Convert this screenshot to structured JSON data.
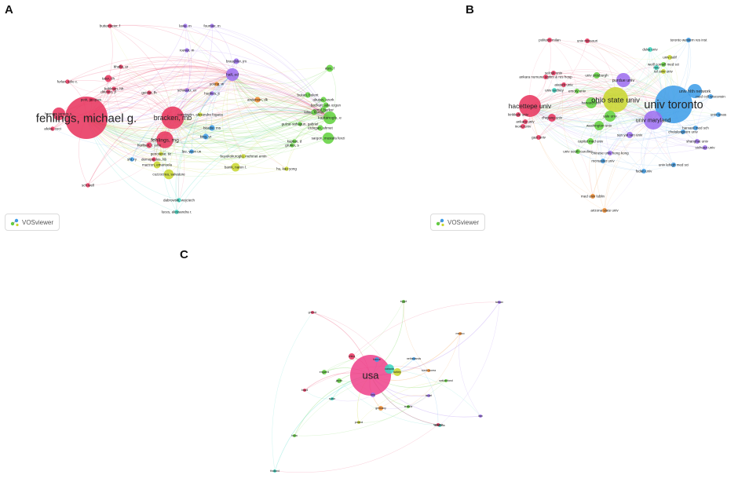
{
  "panels": [
    {
      "letter": "A"
    },
    {
      "letter": "B"
    },
    {
      "letter": "C"
    }
  ],
  "watermark": "VOSviewer",
  "colors": {
    "red": "#e8305a",
    "purple": "#9b6cf0",
    "green": "#5fd13b",
    "blue": "#3a9be8",
    "yellow": "#c8d62a",
    "cyan": "#36d6c0",
    "orange": "#f08a2a",
    "pink": "#ee3f8a"
  },
  "network_a": {
    "nodes": [
      {
        "label": "fehlings, michael g.",
        "color": "red",
        "size": 30
      },
      {
        "label": "bracken, mb",
        "color": "red",
        "size": 16
      },
      {
        "label": "fehlings, mg",
        "color": "red",
        "size": 12
      },
      {
        "label": "hall, ed",
        "color": "purple",
        "size": 9
      },
      {
        "label": "kaptanoglu, e",
        "color": "green",
        "size": 9
      },
      {
        "label": "sargon, mustafa fevzi",
        "color": "green",
        "size": 8
      },
      {
        "label": "cuzzocrea, salvatore",
        "color": "yellow",
        "size": 7
      },
      {
        "label": "banik, naren l.",
        "color": "yellow",
        "size": 6
      },
      {
        "label": "harrop, james s.",
        "color": "red",
        "size": 9
      },
      {
        "label": "mazzon, emanuela",
        "color": "yellow",
        "size": 5
      },
      {
        "label": "dabrowski, wojciech",
        "color": "cyan",
        "size": 3
      },
      {
        "label": "luces, alessandra r.",
        "color": "cyan",
        "size": 3
      },
      {
        "label": "buyukokuroglu, mehmet emin",
        "color": "yellow",
        "size": 3
      },
      {
        "label": "ates, f",
        "color": "green",
        "size": 5
      },
      {
        "label": "braughler, jm",
        "color": "purple",
        "size": 4
      },
      {
        "label": "anderson, dk",
        "color": "orange",
        "size": 4
      },
      {
        "label": "beattie, ms",
        "color": "blue",
        "size": 4
      },
      {
        "label": "hu, kao yong",
        "color": "yellow",
        "size": 3
      },
      {
        "label": "lee, yeon un",
        "color": "blue",
        "size": 3
      },
      {
        "label": "hurlbert, r. john",
        "color": "red",
        "size": 4
      },
      {
        "label": "sch well",
        "color": "red",
        "size": 3
      },
      {
        "label": "okutan, ozerk",
        "color": "green",
        "size": 4
      },
      {
        "label": "bozkurt, atla ozgun",
        "color": "green",
        "size": 4
      },
      {
        "label": "kilinc, kamer",
        "color": "green",
        "size": 4
      },
      {
        "label": "gulzar sahagun, gabriel",
        "color": "green",
        "size": 3
      },
      {
        "label": "erdogan, ahmet",
        "color": "green",
        "size": 4
      },
      {
        "label": "cemil, berker",
        "color": "green",
        "size": 4
      },
      {
        "label": "bukan, bulent",
        "color": "green",
        "size": 4
      },
      {
        "label": "kaptan, d",
        "color": "green",
        "size": 3
      },
      {
        "label": "gruner, s",
        "color": "green",
        "size": 3
      },
      {
        "label": "constantin, alexandre fogaca",
        "color": "yellow",
        "size": 3
      },
      {
        "label": "demopoulos, hb",
        "color": "red",
        "size": 3
      },
      {
        "label": "tator, ch",
        "color": "red",
        "size": 5
      },
      {
        "label": "ditunno, jf",
        "color": "red",
        "size": 3
      },
      {
        "label": "furlan, julio c.",
        "color": "red",
        "size": 3
      },
      {
        "label": "bhalla, ar",
        "color": "red",
        "size": 3
      },
      {
        "label": "bohlman, hh",
        "color": "red",
        "size": 3
      },
      {
        "label": "buttermeier, f",
        "color": "red",
        "size": 3
      },
      {
        "label": "lavie, m",
        "color": "purple",
        "size": 3
      },
      {
        "label": "fournier, m",
        "color": "purple",
        "size": 3
      },
      {
        "label": "roever, m",
        "color": "purple",
        "size": 3
      },
      {
        "label": "young, w",
        "color": "orange",
        "size": 3
      },
      {
        "label": "hughes, jt",
        "color": "purple",
        "size": 3
      },
      {
        "label": "schwartz, er",
        "color": "purple",
        "size": 3
      },
      {
        "label": "geisler, fh",
        "color": "red",
        "size": 3
      },
      {
        "label": "petit, jacques",
        "color": "red",
        "size": 3
      },
      {
        "label": "afeku, ceci",
        "color": "red",
        "size": 3
      },
      {
        "label": "shi, ry",
        "color": "blue",
        "size": 3
      },
      {
        "label": "genovese, tiz",
        "color": "yellow",
        "size": 3
      },
      {
        "label": "king, vr",
        "color": "blue",
        "size": 4
      }
    ]
  },
  "network_b": {
    "nodes": [
      {
        "label": "univ toronto",
        "color": "blue",
        "size": 24
      },
      {
        "label": "ohio state univ",
        "color": "yellow",
        "size": 16
      },
      {
        "label": "hacettepe univ",
        "color": "red",
        "size": 14
      },
      {
        "label": "univ maryland",
        "color": "purple",
        "size": 12
      },
      {
        "label": "univ hlth network",
        "color": "blue",
        "size": 9
      },
      {
        "label": "purdue univ",
        "color": "purple",
        "size": 9
      },
      {
        "label": "harvard univ",
        "color": "green",
        "size": 7
      },
      {
        "label": "yale univ",
        "color": "green",
        "size": 7
      },
      {
        "label": "washington univ",
        "color": "green",
        "size": 6
      },
      {
        "label": "zhejiang univ",
        "color": "red",
        "size": 5
      },
      {
        "label": "univ pittsburgh",
        "color": "green",
        "size": 4
      },
      {
        "label": "capital med univ",
        "color": "green",
        "size": 4
      },
      {
        "label": "sun yat sen univ",
        "color": "purple",
        "size": 4
      },
      {
        "label": "mcmaster univ",
        "color": "blue",
        "size": 3
      },
      {
        "label": "harvard med sch",
        "color": "blue",
        "size": 3
      },
      {
        "label": "duke univ",
        "color": "cyan",
        "size": 3
      },
      {
        "label": "toronto western res inst",
        "color": "blue",
        "size": 3
      },
      {
        "label": "politecn milan",
        "color": "red",
        "size": 3
      },
      {
        "label": "univ missouri",
        "color": "red",
        "size": 3
      },
      {
        "label": "weill cornell med sci",
        "color": "green",
        "size": 3
      },
      {
        "label": "tel aviv univ",
        "color": "yellow",
        "size": 3
      },
      {
        "label": "univ south carolina",
        "color": "green",
        "size": 3
      },
      {
        "label": "chinese univ hong kong",
        "color": "purple",
        "size": 3
      },
      {
        "label": "med univ lublin",
        "color": "orange",
        "size": 3
      },
      {
        "label": "arizona state univ",
        "color": "orange",
        "size": 3
      },
      {
        "label": "ankara numune egitim & res hosp",
        "color": "red",
        "size": 3
      },
      {
        "label": "univ lehigh med sci",
        "color": "blue",
        "size": 3
      },
      {
        "label": "med coll wisconsin",
        "color": "blue",
        "size": 3
      },
      {
        "label": "shanghai univ",
        "color": "purple",
        "size": 3
      },
      {
        "label": "fudan univ",
        "color": "blue",
        "size": 3
      },
      {
        "label": "kirikkale univ",
        "color": "red",
        "size": 3
      },
      {
        "label": "ankara univ",
        "color": "red",
        "size": 3
      },
      {
        "label": "inonu univ",
        "color": "red",
        "size": 3
      },
      {
        "label": "gazi univ",
        "color": "red",
        "size": 3
      },
      {
        "label": "selcuk univ",
        "color": "red",
        "size": 3
      },
      {
        "label": "ataturk univ",
        "color": "red",
        "size": 3
      },
      {
        "label": "emory univ",
        "color": "green",
        "size": 3
      },
      {
        "label": "univ texas",
        "color": "blue",
        "size": 3
      },
      {
        "label": "nyu",
        "color": "cyan",
        "size": 3
      },
      {
        "label": "univ calif",
        "color": "yellow",
        "size": 3
      },
      {
        "label": "sichuan univ",
        "color": "purple",
        "size": 3
      },
      {
        "label": "univ sydney",
        "color": "cyan",
        "size": 3
      },
      {
        "label": "chulalongkorn univ",
        "color": "blue",
        "size": 3
      }
    ]
  },
  "network_c": {
    "nodes": [
      {
        "label": "usa",
        "color": "pink",
        "size": 26
      },
      {
        "label": "canada",
        "color": "cyan",
        "size": 6
      },
      {
        "label": "turkey",
        "color": "yellow",
        "size": 5
      },
      {
        "label": "china",
        "color": "red",
        "size": 4
      },
      {
        "label": "japan",
        "color": "green",
        "size": 3
      },
      {
        "label": "italy",
        "color": "purple",
        "size": 3
      },
      {
        "label": "germany",
        "color": "orange",
        "size": 3
      },
      {
        "label": "france",
        "color": "blue",
        "size": 3
      },
      {
        "label": "england",
        "color": "green",
        "size": 3
      },
      {
        "label": "brazil",
        "color": "red",
        "size": 2
      },
      {
        "label": "iran",
        "color": "purple",
        "size": 2
      },
      {
        "label": "india",
        "color": "green",
        "size": 2
      },
      {
        "label": "spain",
        "color": "cyan",
        "size": 2
      },
      {
        "label": "poland",
        "color": "yellow",
        "size": 2
      },
      {
        "label": "south korea",
        "color": "orange",
        "size": 2
      },
      {
        "label": "australia",
        "color": "cyan",
        "size": 2
      },
      {
        "label": "switzerland",
        "color": "green",
        "size": 2
      },
      {
        "label": "netherlands",
        "color": "blue",
        "size": 2
      },
      {
        "label": "sweden",
        "color": "red",
        "size": 2
      },
      {
        "label": "israel",
        "color": "purple",
        "size": 2
      },
      {
        "label": "austria",
        "color": "green",
        "size": 2
      },
      {
        "label": "mexico",
        "color": "orange",
        "size": 2
      },
      {
        "label": "greece",
        "color": "red",
        "size": 2
      },
      {
        "label": "egypt",
        "color": "green",
        "size": 2
      },
      {
        "label": "taiwan",
        "color": "purple",
        "size": 2
      },
      {
        "label": "thailand",
        "color": "cyan",
        "size": 2
      }
    ]
  }
}
